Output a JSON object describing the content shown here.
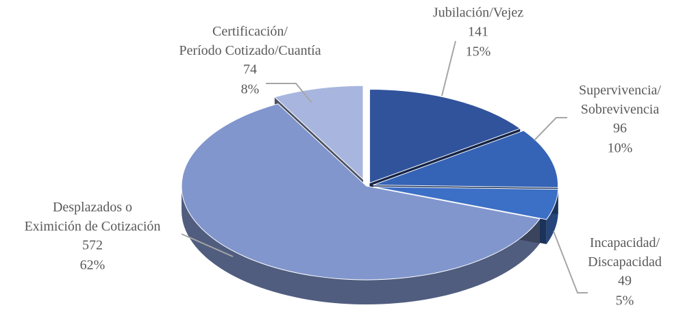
{
  "chart_data": {
    "type": "pie3d",
    "categories": [
      "Jubilación/Vejez",
      "Supervivencia/\nSobrevivencia",
      "Incapacidad/\nDiscapacidad",
      "Desplazados o\nEximición de Cotización",
      "Certificación/\nPeríodo Cotizado/Cuantía"
    ],
    "values": [
      141,
      96,
      49,
      572,
      74
    ],
    "percent_labels": [
      "15%",
      "10%",
      "5%",
      "62%",
      "8%"
    ],
    "colors": [
      "#31539c",
      "#3563b6",
      "#3c6fc6",
      "#8196cd",
      "#a8b6df"
    ]
  }
}
